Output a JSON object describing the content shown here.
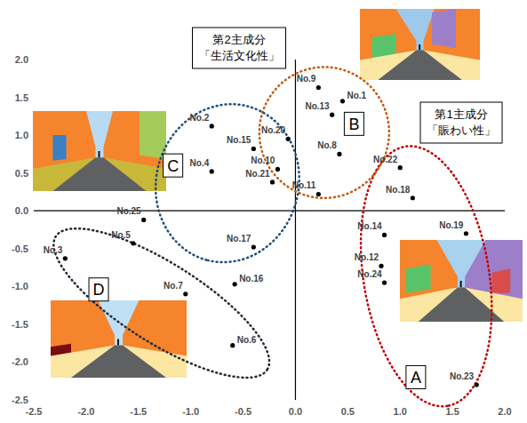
{
  "chart_data": {
    "type": "scatter",
    "marker": "circle",
    "color": "#000000",
    "grid": false,
    "xlabel": [
      "第1主成分",
      "「賑わい性」"
    ],
    "ylabel": [
      "第2主成分",
      "「生活文化性」"
    ],
    "labels": [
      "No.9",
      "No.1",
      "No.13",
      "No.20",
      "No.8",
      "No.10",
      "No.21",
      "No.11",
      "No.2",
      "No.15",
      "No.4",
      "No.25",
      "No.17",
      "No.5",
      "No.3",
      "No.7",
      "No.16",
      "No.6",
      "No.22",
      "No.18",
      "No.19",
      "No.14",
      "No.12",
      "No.24",
      "No.23"
    ],
    "x": [
      0.22,
      0.45,
      0.35,
      -0.07,
      0.42,
      -0.17,
      -0.22,
      0.22,
      -0.8,
      -0.4,
      -0.8,
      -1.45,
      -0.4,
      -1.55,
      -2.2,
      -1.05,
      -0.58,
      -0.6,
      1.0,
      1.12,
      1.63,
      0.85,
      0.82,
      0.85,
      1.73
    ],
    "values": [
      1.63,
      1.45,
      1.27,
      0.95,
      0.75,
      0.55,
      0.38,
      0.22,
      1.12,
      0.82,
      0.52,
      -0.12,
      -0.48,
      -0.43,
      -0.63,
      -1.1,
      -0.97,
      -1.78,
      0.57,
      0.17,
      -0.3,
      -0.32,
      -0.73,
      -0.95,
      -2.3
    ],
    "xlim": [
      -2.5,
      2.0
    ],
    "ylim": [
      -2.5,
      2.0
    ],
    "xticks": [
      -2.5,
      {
        "value": -2.0,
        "label": "-2.0"
      },
      -1.5,
      {
        "value": -1.0,
        "label": "-1.0"
      },
      -0.5,
      {
        "value": 0,
        "label": "0.0"
      },
      0.5,
      {
        "value": 1.0,
        "label": "1.0"
      },
      1.5,
      {
        "value": 2.0,
        "label": "2.0"
      }
    ],
    "yticks": [
      -2.5,
      {
        "value": -2.0,
        "label": "-2.0"
      },
      -1.5,
      {
        "value": -1.0,
        "label": "-1.0"
      },
      -0.5,
      {
        "value": 0,
        "label": "0.0"
      },
      0.5,
      {
        "value": 1.0,
        "label": "1.0"
      },
      1.5,
      {
        "value": 2.0,
        "label": "2.0"
      }
    ],
    "groups": [
      {
        "label": "A",
        "color": "#c00000",
        "label_at": [
          1.15,
          -2.2
        ],
        "from": [
          1.05,
          0.85
        ],
        "to": [
          1.45,
          -2.58
        ],
        "half_width": 0.6
      },
      {
        "label": "B",
        "color": "#c55a11",
        "label_at": [
          0.56,
          1.15
        ],
        "from": [
          0.3,
          1.9
        ],
        "to": [
          0.25,
          0.17
        ],
        "half_width": 0.62
      },
      {
        "label": "C",
        "color": "#1f4e79",
        "label_at": [
          -1.17,
          0.6
        ],
        "from": [
          -0.45,
          1.38
        ],
        "to": [
          -0.85,
          -0.65
        ],
        "half_width": 0.68
      },
      {
        "label": "D",
        "color": "#222a35",
        "label_at": [
          -1.88,
          -1.04
        ],
        "from": [
          -2.29,
          -0.34
        ],
        "to": [
          -0.27,
          -2.1
        ],
        "half_width": 0.38
      }
    ]
  }
}
